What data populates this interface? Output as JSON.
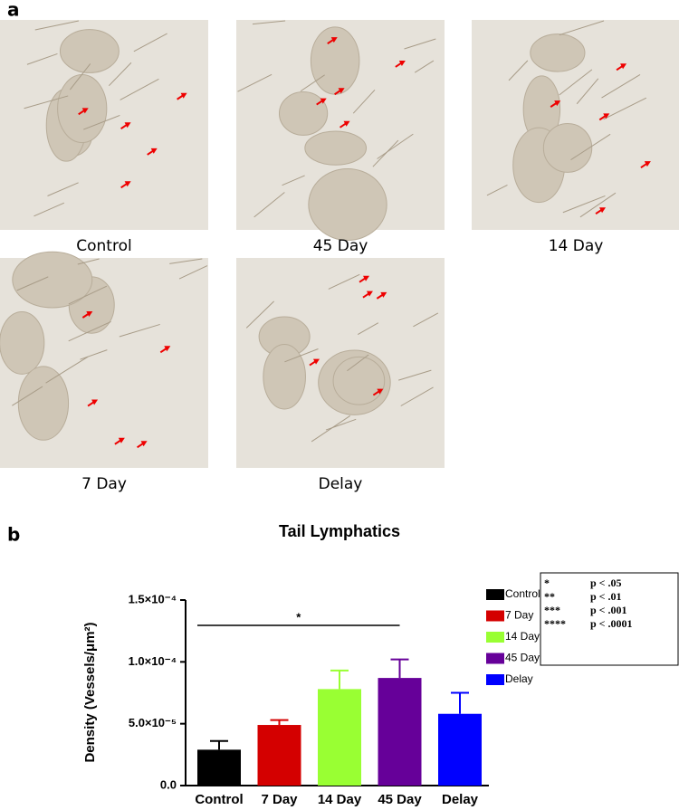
{
  "panel_a": {
    "label": "a",
    "images": [
      {
        "caption": "Control"
      },
      {
        "caption": "45 Day"
      },
      {
        "caption": "14 Day"
      },
      {
        "caption": "7 Day"
      },
      {
        "caption": "Delay"
      }
    ]
  },
  "panel_b_label": "b",
  "chart_data": {
    "type": "bar",
    "title": "Tail Lymphatics",
    "y_label": "Density (Vessels/μm²)",
    "categories": [
      "Control",
      "7 Day",
      "14 Day",
      "45 Day",
      "Delay"
    ],
    "values": [
      2.9e-05,
      4.9e-05,
      7.8e-05,
      8.7e-05,
      5.8e-05
    ],
    "errors": [
      7e-06,
      4e-06,
      1.5e-05,
      1.5e-05,
      1.7e-05
    ],
    "colors": [
      "#000000",
      "#d40000",
      "#99ff33",
      "#660099",
      "#0000ff"
    ],
    "legend": [
      "Control",
      "7  Day",
      "14 Day",
      "45 Day",
      "Delay"
    ],
    "ylim": [
      0,
      0.00015
    ],
    "yticks": [
      {
        "value": 0,
        "label": "0.0"
      },
      {
        "value": 5e-05,
        "label": "5.0×10⁻⁵"
      },
      {
        "value": 0.0001,
        "label": "1.0×10⁻⁴"
      },
      {
        "value": 0.00015,
        "label": "1.5×10⁻⁴"
      }
    ],
    "significance": {
      "from": "Control",
      "to": "45 Day",
      "text": "*"
    },
    "significance_key": [
      [
        "*",
        "p < .05"
      ],
      [
        "**",
        "p < .01"
      ],
      [
        "***",
        "p < .001"
      ],
      [
        "****",
        "p < .0001"
      ]
    ]
  }
}
